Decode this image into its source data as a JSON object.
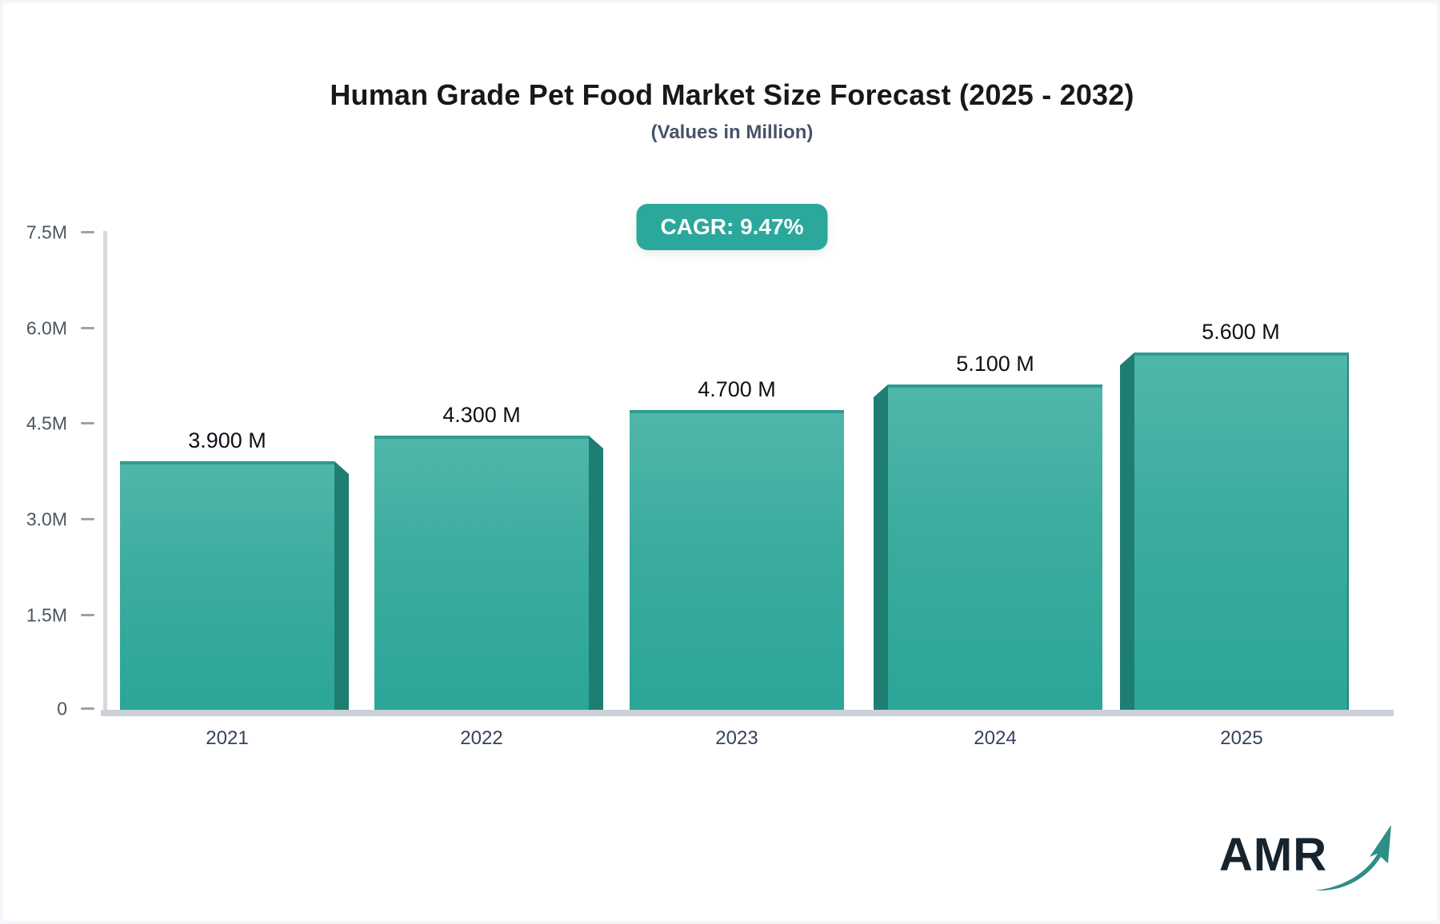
{
  "header": {
    "title": "Human Grade Pet Food Market Size Forecast (2025 - 2032)",
    "subtitle": "(Values in Million)",
    "cagr_label": "CAGR: 9.47%"
  },
  "chart_data": {
    "type": "bar",
    "title": "Human Grade Pet Food Market Size Forecast (2025 - 2032)",
    "subtitle": "(Values in Million)",
    "cagr": "9.47%",
    "categories": [
      "2021",
      "2022",
      "2023",
      "2024",
      "2025"
    ],
    "values": [
      3.9,
      4.3,
      4.7,
      5.1,
      5.6
    ],
    "value_labels": [
      "3.900 M",
      "4.300 M",
      "4.700 M",
      "5.100 M",
      "5.600 M"
    ],
    "ylim": [
      0,
      7.5
    ],
    "ytick_labels": [
      "7.5M",
      "6.0M",
      "4.5M",
      "3.0M",
      "1.5M",
      "0"
    ],
    "grid": false,
    "legend": false,
    "bar_color_top": "#50B6AA",
    "bar_color_bottom": "#2BA697",
    "bar_side_color": "#1E7E72",
    "accent_color": "#2BA89B",
    "axis_color": "#D6D9DE",
    "baseline_color": "#CCD1D9"
  },
  "logo": {
    "text": "AMR",
    "text_color": "#17242E",
    "arrow_color": "#2F8E86"
  }
}
